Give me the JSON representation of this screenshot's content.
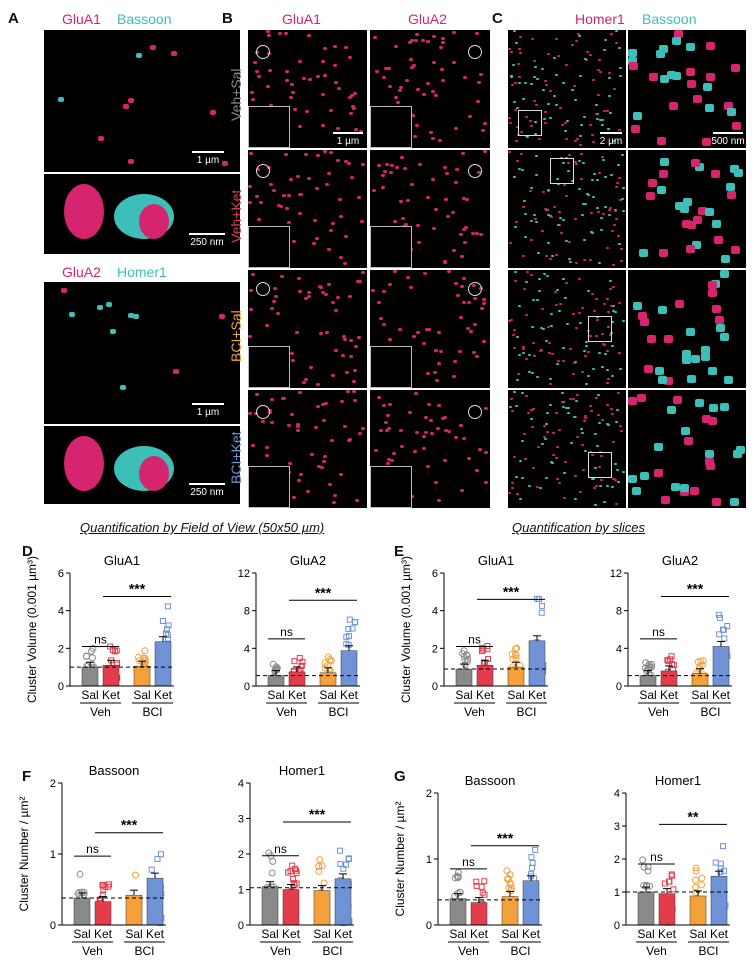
{
  "panels": {
    "A": {
      "letter": "A",
      "top_labels": [
        "GluA1",
        "Bassoon"
      ],
      "bottom_labels": [
        "GluA2",
        "Homer1"
      ],
      "scalebars": [
        "1 µm",
        "250 nm",
        "1 µm",
        "250 nm"
      ]
    },
    "B": {
      "letter": "B",
      "col_labels": [
        "GluA1",
        "GluA2"
      ],
      "row_labels": [
        "Veh+Sal",
        "Veh+Ket",
        "BCI+Sal",
        "BCI+Ket"
      ],
      "scalebar": "1 µm"
    },
    "C": {
      "letter": "C",
      "col_labels": [
        "Homer1",
        "Bassoon"
      ],
      "scalebars": [
        "2 µm",
        "500 nm"
      ]
    }
  },
  "headings": {
    "left": "Quantification by Field of View (50x50 µm)",
    "right": "Quantification by slices"
  },
  "colors": {
    "magenta": "#d6246e",
    "cyan": "#3bbfb8",
    "gray": "#8a8a8a",
    "red": "#e33d4c",
    "orange": "#f4a13b",
    "blue": "#6f93d6"
  },
  "chart_data": [
    {
      "panel": "D",
      "type": "bar",
      "title": "GluA1",
      "ylabel": "Cluster Volume (0.001 µm³)",
      "ylim": [
        0,
        6
      ],
      "yticks": [
        0,
        2,
        4,
        6
      ],
      "categories": [
        "Sal",
        "Ket",
        "Sal",
        "Ket"
      ],
      "groups": [
        "Veh",
        "BCI"
      ],
      "values": [
        1.0,
        1.1,
        1.05,
        2.35
      ],
      "sig": [
        {
          "label": "ns",
          "from": 0,
          "to": 1,
          "y": 2.1
        },
        {
          "label": "***",
          "from": 1,
          "to": 3,
          "y": 4.75
        }
      ],
      "baseline": 1.0
    },
    {
      "panel": "D",
      "type": "bar",
      "title": "GluA2",
      "ylabel": "",
      "ylim": [
        0,
        12
      ],
      "yticks": [
        0,
        4,
        8,
        12
      ],
      "categories": [
        "Sal",
        "Ket",
        "Sal",
        "Ket"
      ],
      "groups": [
        "Veh",
        "BCI"
      ],
      "values": [
        1.1,
        1.5,
        1.4,
        3.75
      ],
      "sig": [
        {
          "label": "ns",
          "from": 0,
          "to": 1,
          "y": 5.0
        },
        {
          "label": "***",
          "from": 1,
          "to": 3,
          "y": 9.1
        }
      ],
      "baseline": 1.1
    },
    {
      "panel": "E",
      "type": "bar",
      "title": "GluA1",
      "ylabel": "Cluster Volume (0.001 µm³)",
      "ylim": [
        0,
        6
      ],
      "yticks": [
        0,
        2,
        4,
        6
      ],
      "categories": [
        "Sal",
        "Ket",
        "Sal",
        "Ket"
      ],
      "groups": [
        "Veh",
        "BCI"
      ],
      "values": [
        0.9,
        1.1,
        1.0,
        2.4
      ],
      "sig": [
        {
          "label": "ns",
          "from": 0,
          "to": 1,
          "y": 2.1
        },
        {
          "label": "***",
          "from": 1,
          "to": 3,
          "y": 4.6
        }
      ],
      "baseline": 0.9
    },
    {
      "panel": "E",
      "type": "bar",
      "title": "GluA2",
      "ylabel": "",
      "ylim": [
        0,
        12
      ],
      "yticks": [
        0,
        4,
        8,
        12
      ],
      "categories": [
        "Sal",
        "Ket",
        "Sal",
        "Ket"
      ],
      "groups": [
        "Veh",
        "BCI"
      ],
      "values": [
        1.1,
        1.6,
        1.3,
        4.2
      ],
      "sig": [
        {
          "label": "ns",
          "from": 0,
          "to": 1,
          "y": 5.0
        },
        {
          "label": "***",
          "from": 1,
          "to": 3,
          "y": 9.5
        }
      ],
      "baseline": 1.1
    },
    {
      "panel": "F",
      "type": "bar",
      "title": "Bassoon",
      "ylabel": "Cluster Number / µm²",
      "ylim": [
        0,
        2
      ],
      "yticks": [
        0,
        1,
        2
      ],
      "categories": [
        "Sal",
        "Ket",
        "Sal",
        "Ket"
      ],
      "groups": [
        "Veh",
        "BCI"
      ],
      "values": [
        0.38,
        0.33,
        0.42,
        0.66
      ],
      "sig": [
        {
          "label": "ns",
          "from": 0,
          "to": 1,
          "y": 0.97
        },
        {
          "label": "***",
          "from": 1,
          "to": 3,
          "y": 1.3
        }
      ],
      "baseline": 0.38
    },
    {
      "panel": "F",
      "type": "bar",
      "title": "Homer1",
      "ylabel": "",
      "ylim": [
        0,
        4
      ],
      "yticks": [
        0,
        1,
        2,
        3,
        4
      ],
      "categories": [
        "Sal",
        "Ket",
        "Sal",
        "Ket"
      ],
      "groups": [
        "Veh",
        "BCI"
      ],
      "values": [
        1.08,
        1.0,
        0.97,
        1.3
      ],
      "sig": [
        {
          "label": "ns",
          "from": 0,
          "to": 1,
          "y": 1.95
        },
        {
          "label": "***",
          "from": 1,
          "to": 3,
          "y": 2.9
        }
      ],
      "baseline": 1.05
    },
    {
      "panel": "G",
      "type": "bar",
      "title": "Bassoon",
      "ylabel": "Cluster Number / µm²",
      "ylim": [
        0,
        2
      ],
      "yticks": [
        0,
        1,
        2
      ],
      "categories": [
        "Sal",
        "Ket",
        "Sal",
        "Ket"
      ],
      "groups": [
        "Veh",
        "BCI"
      ],
      "values": [
        0.4,
        0.34,
        0.43,
        0.67
      ],
      "sig": [
        {
          "label": "ns",
          "from": 0,
          "to": 1,
          "y": 0.85
        },
        {
          "label": "***",
          "from": 1,
          "to": 3,
          "y": 1.2
        }
      ],
      "baseline": 0.38
    },
    {
      "panel": "G",
      "type": "bar",
      "title": "Homer1",
      "ylabel": "",
      "ylim": [
        0,
        4
      ],
      "yticks": [
        0,
        1,
        2,
        3,
        4
      ],
      "categories": [
        "Sal",
        "Ket",
        "Sal",
        "Ket"
      ],
      "groups": [
        "Veh",
        "BCI"
      ],
      "values": [
        1.0,
        0.95,
        0.88,
        1.48
      ],
      "sig": [
        {
          "label": "ns",
          "from": 0,
          "to": 1,
          "y": 1.85
        },
        {
          "label": "**",
          "from": 1,
          "to": 3,
          "y": 3.05
        }
      ],
      "baseline": 1.0
    }
  ]
}
